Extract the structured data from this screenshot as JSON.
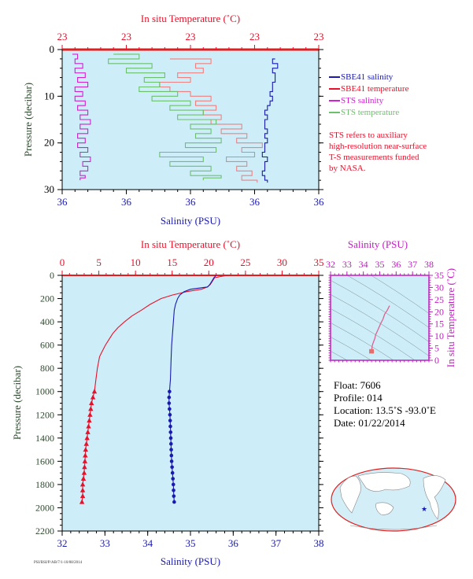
{
  "chart_data": [
    {
      "type": "line",
      "panel": "near-surface profile",
      "top_axis": {
        "label": "In situ Temperature (˚C)",
        "tick_labels": [
          "23",
          "23",
          "23",
          "23",
          "23"
        ],
        "color": "#e8102a"
      },
      "bottom_axis": {
        "label": "Salinity (PSU)",
        "tick_labels": [
          "36",
          "36",
          "36",
          "36",
          "36"
        ],
        "color": "#1a1ab0"
      },
      "left_axis": {
        "label": "Pressure (decibar)",
        "ylim": [
          0,
          30
        ],
        "reversed": true,
        "tick_labels": [
          "0",
          "10",
          "20",
          "30"
        ],
        "color": "#2e4a2e"
      },
      "grid": false,
      "legend_placement": "right",
      "series": [
        {
          "name": "SBE41 salinity",
          "color": "#1a1ab0",
          "x_norm": [
            0.83,
            0.82,
            0.84,
            0.82,
            0.83,
            0.83,
            0.82,
            0.82,
            0.81,
            0.82,
            0.81,
            0.8,
            0.79,
            0.8,
            0.79,
            0.79,
            0.8,
            0.79,
            0.8,
            0.79,
            0.79,
            0.78,
            0.8,
            0.79,
            0.79,
            0.78,
            0.79,
            0.8
          ],
          "y": [
            2,
            3,
            4,
            5,
            6,
            7,
            8,
            9,
            10,
            11,
            12,
            13,
            14,
            15,
            16,
            17,
            18,
            19,
            20,
            21,
            22,
            23,
            24,
            25,
            26,
            27,
            28,
            28.5
          ]
        },
        {
          "name": "SBE41 temperature",
          "color": "#f08080",
          "x_norm": [
            0.42,
            0.58,
            0.52,
            0.55,
            0.45,
            0.5,
            0.38,
            0.42,
            0.5,
            0.58,
            0.52,
            0.6,
            0.55,
            0.62,
            0.58,
            0.7,
            0.62,
            0.72,
            0.68,
            0.78,
            0.7,
            0.75,
            0.64,
            0.72,
            0.68,
            0.74,
            0.7,
            0.76
          ],
          "y": [
            2,
            3,
            4,
            5,
            6,
            7,
            8,
            9,
            10,
            11,
            12,
            13,
            14,
            15,
            16,
            17,
            18,
            19,
            20,
            21,
            22,
            23,
            24,
            25,
            26,
            27,
            28,
            28.5
          ]
        },
        {
          "name": "STS salinity",
          "color": "#d020d0",
          "x_norm": [
            0.04,
            0.06,
            0.05,
            0.08,
            0.05,
            0.09,
            0.06,
            0.1,
            0.05,
            0.08,
            0.05,
            0.09,
            0.06,
            0.1,
            0.07,
            0.11,
            0.07,
            0.1,
            0.06,
            0.09,
            0.06,
            0.1,
            0.07,
            0.11,
            0.08,
            0.1,
            0.07,
            0.09,
            0.07
          ],
          "y": [
            1,
            2,
            3,
            4,
            5,
            6,
            7,
            8,
            9,
            10,
            11,
            12,
            13,
            14,
            15,
            16,
            17,
            18,
            19,
            20,
            21,
            22,
            23,
            24,
            25,
            26,
            27,
            27.5,
            28
          ]
        },
        {
          "name": "STS temperature",
          "color": "#6cc06c",
          "x_norm": [
            0.2,
            0.3,
            0.18,
            0.35,
            0.25,
            0.4,
            0.32,
            0.38,
            0.3,
            0.45,
            0.35,
            0.5,
            0.42,
            0.55,
            0.45,
            0.6,
            0.5,
            0.58,
            0.52,
            0.62,
            0.48,
            0.6,
            0.38,
            0.55,
            0.42,
            0.58,
            0.5,
            0.62,
            0.55
          ],
          "y": [
            1,
            2,
            3,
            4,
            5,
            6,
            7,
            8,
            9,
            10,
            11,
            12,
            13,
            14,
            15,
            16,
            17,
            18,
            19,
            20,
            21,
            22,
            23,
            24,
            25,
            26,
            27,
            27.5,
            28
          ]
        }
      ],
      "note": [
        "STS refers to auxiliary",
        "high-resolution near-surface",
        "T-S measurements funded",
        "by NASA."
      ]
    },
    {
      "type": "line",
      "panel": "full-depth profile",
      "top_axis": {
        "label": "In situ Temperature (˚C)",
        "xlim": [
          0,
          35
        ],
        "tick_labels": [
          "0",
          "5",
          "10",
          "15",
          "20",
          "25",
          "30",
          "35"
        ],
        "color": "#e8102a"
      },
      "bottom_axis": {
        "label": "Salinity (PSU)",
        "xlim": [
          32,
          38
        ],
        "tick_labels": [
          "32",
          "33",
          "34",
          "35",
          "36",
          "37",
          "38"
        ],
        "color": "#1a1ab0"
      },
      "left_axis": {
        "label": "Pressure (decibar)",
        "ylim": [
          0,
          2200
        ],
        "reversed": true,
        "tick_labels": [
          "0",
          "200",
          "400",
          "600",
          "800",
          "1000",
          "1200",
          "1400",
          "1600",
          "1800",
          "2000",
          "2200"
        ],
        "color": "#2e4a2e"
      },
      "grid": false,
      "series": [
        {
          "name": "temperature",
          "axis": "top",
          "color": "#e8102a",
          "marker_from_pressure": 1000,
          "marker": "triangle",
          "x": [
            22.5,
            20.8,
            20.5,
            20.2,
            19.8,
            19.0,
            17.0,
            15.0,
            13.5,
            12.0,
            10.8,
            9.5,
            8.5,
            7.6,
            6.9,
            6.4,
            5.9,
            5.5,
            5.1,
            4.8,
            4.6,
            4.4,
            4.2,
            4.0,
            3.8,
            3.6,
            3.4,
            3.2,
            3.1,
            3.0,
            2.9,
            2.8,
            2.8,
            2.7
          ],
          "y": [
            0,
            20,
            50,
            80,
            100,
            120,
            140,
            170,
            200,
            250,
            300,
            350,
            400,
            450,
            500,
            550,
            600,
            650,
            700,
            800,
            900,
            1000,
            1050,
            1100,
            1200,
            1300,
            1400,
            1500,
            1600,
            1700,
            1750,
            1800,
            1900,
            1950
          ]
        },
        {
          "name": "salinity",
          "axis": "bottom",
          "color": "#1a1ab0",
          "marker_from_pressure": 1000,
          "marker": "circle",
          "x": [
            35.6,
            35.55,
            35.5,
            35.45,
            35.4,
            35.0,
            34.85,
            34.75,
            34.7,
            34.65,
            34.62,
            34.6,
            34.58,
            34.56,
            34.55,
            34.54,
            34.53,
            34.52,
            34.51,
            34.5,
            34.5,
            34.51,
            34.52,
            34.53,
            34.54,
            34.55,
            34.56,
            34.57,
            34.58,
            34.59,
            34.6,
            34.61,
            34.62
          ],
          "y": [
            0,
            20,
            50,
            80,
            100,
            120,
            140,
            170,
            200,
            250,
            300,
            400,
            500,
            600,
            700,
            800,
            900,
            950,
            1000,
            1050,
            1100,
            1150,
            1200,
            1300,
            1400,
            1500,
            1600,
            1650,
            1700,
            1750,
            1800,
            1900,
            1950
          ]
        }
      ]
    },
    {
      "type": "line",
      "panel": "T-S diagram",
      "top_axis": {
        "label": "Salinity (PSU)",
        "xlim": [
          32,
          38
        ],
        "tick_labels": [
          "32",
          "33",
          "34",
          "35",
          "36",
          "37",
          "38"
        ],
        "color": "#c020c0"
      },
      "right_axis": {
        "label": "In situ Temperature (˚C)",
        "ylim": [
          0,
          35
        ],
        "tick_labels": [
          "0",
          "5",
          "10",
          "15",
          "20",
          "25",
          "30",
          "35"
        ],
        "color": "#c020c0"
      },
      "series": [
        {
          "name": "T-S",
          "color": "#e06090",
          "x": [
            35.6,
            35.45,
            35.3,
            35.2,
            35.05,
            34.95,
            34.85,
            34.75,
            34.7,
            34.62,
            34.56,
            34.53,
            34.52,
            34.55,
            34.58
          ],
          "y": [
            22.5,
            20.5,
            19.0,
            17.0,
            15.0,
            13.5,
            12.0,
            10.5,
            9.0,
            7.6,
            6.4,
            5.5,
            4.6,
            3.8,
            2.8
          ]
        }
      ]
    }
  ],
  "float_info": {
    "float": "Float: 7606",
    "profile": "Profile: 014",
    "location": "Location: 13.5˚S -93.0˚E",
    "date": "Date: 01/22/2014"
  },
  "map": {
    "marker_label": "★",
    "marker_color": "#1a1ab0",
    "ocean_color": "#d4eef8",
    "land_color": "#ffffff",
    "border_color": "#e02020"
  },
  "stamp": "PSI/BSI/P/AB/7/1-10/08/2014",
  "colors": {
    "panel_bg": "#cdeef8",
    "frame": "#e02020",
    "pressure": "#2e4a2e"
  }
}
